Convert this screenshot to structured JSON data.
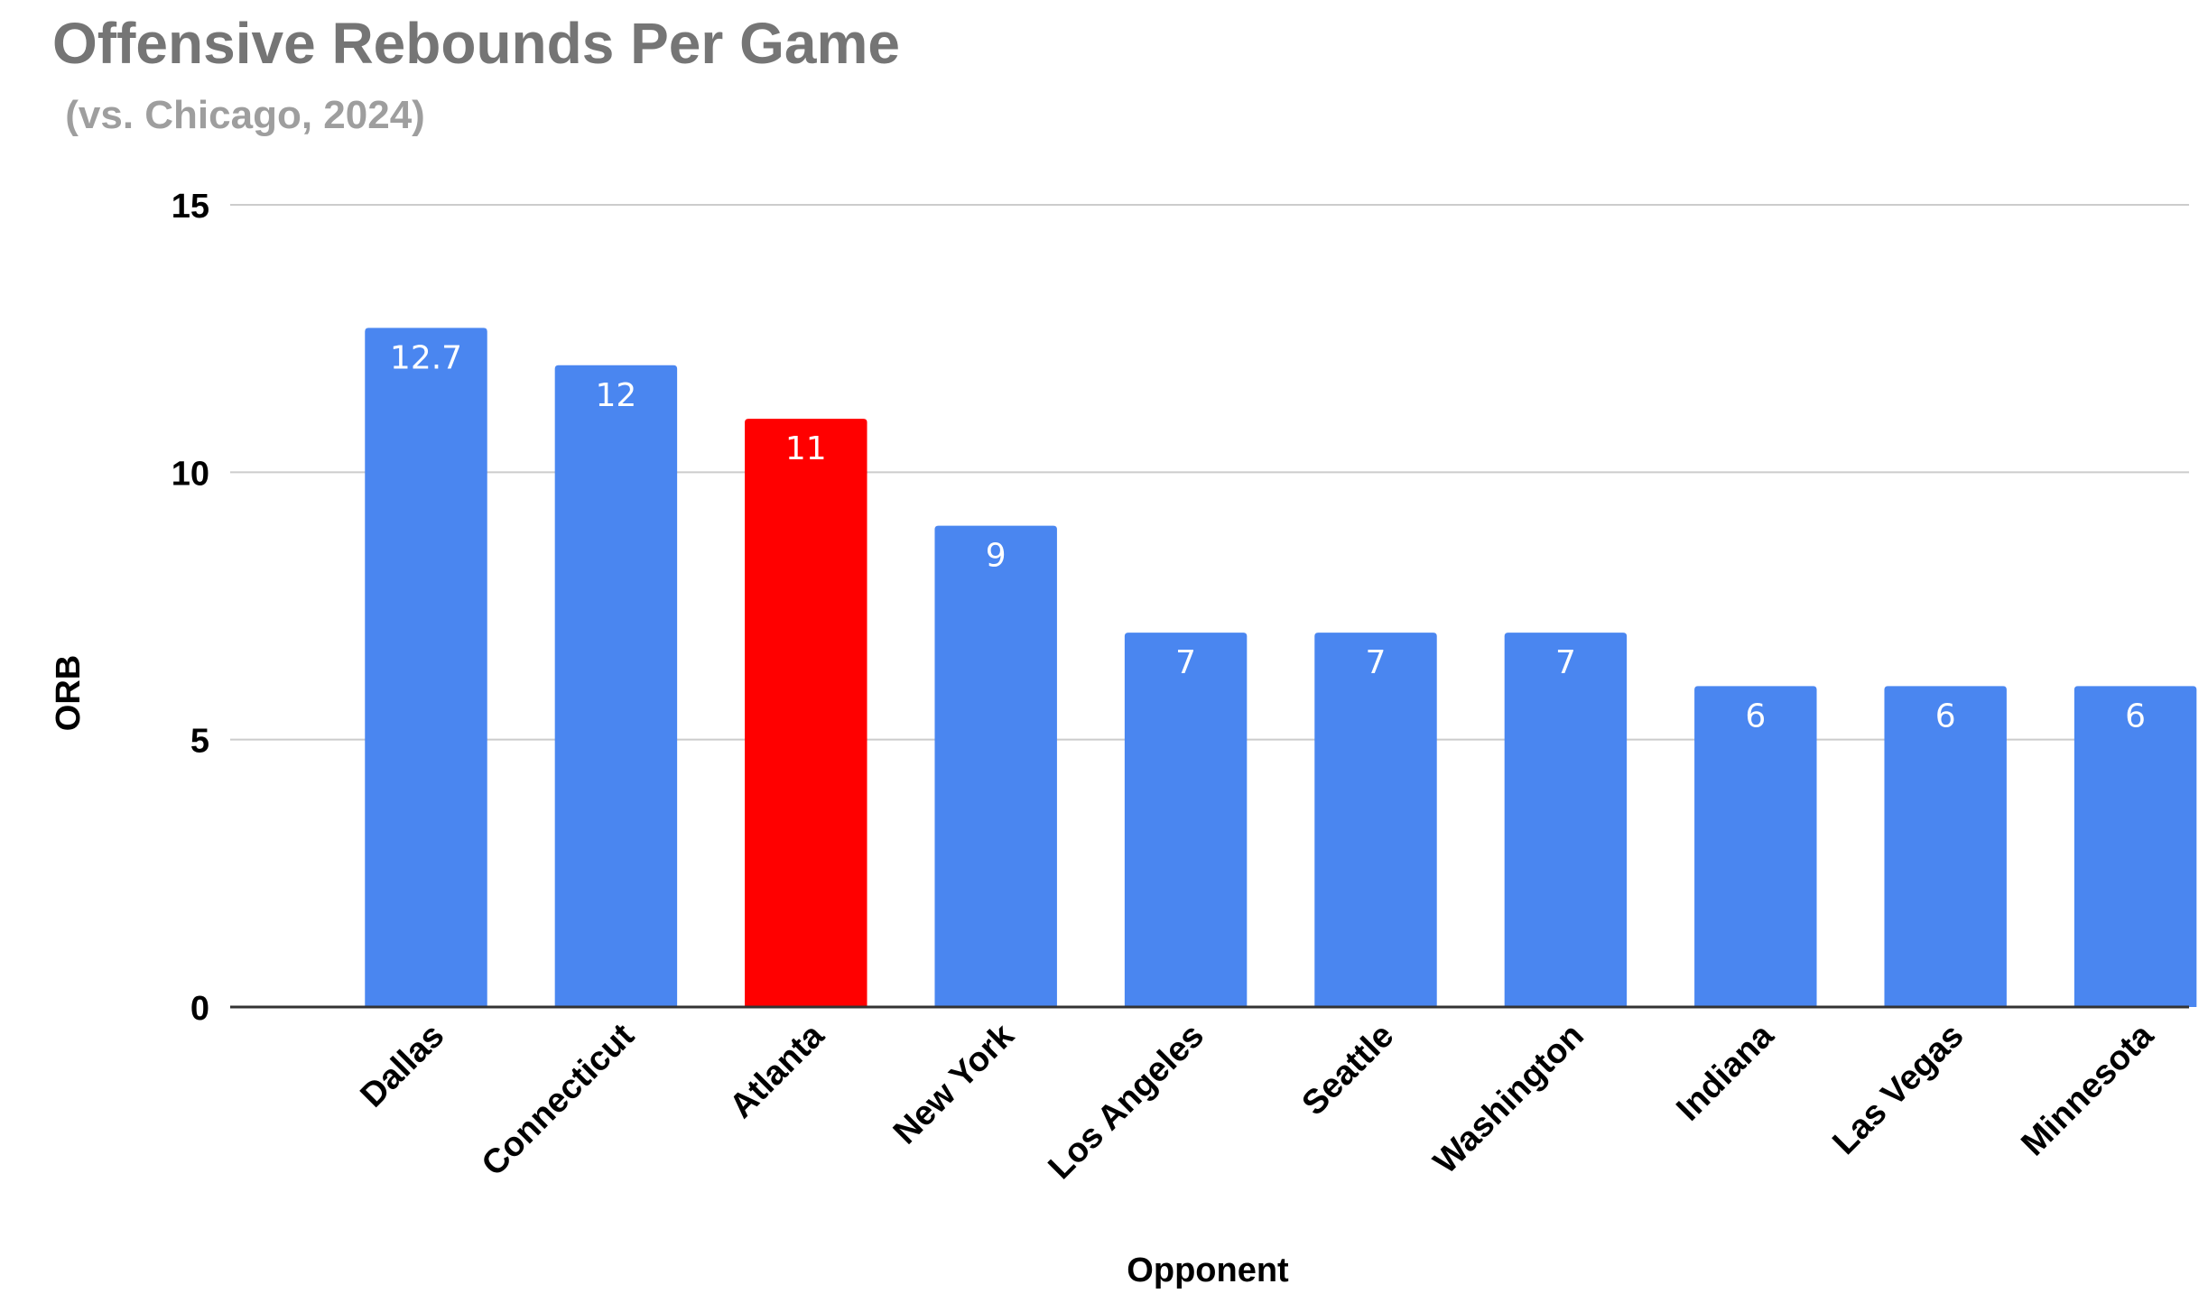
{
  "chart_data": {
    "type": "bar",
    "title": "Offensive Rebounds Per Game",
    "subtitle": " (vs. Chicago, 2024)",
    "xlabel": "Opponent",
    "ylabel": "ORB",
    "categories": [
      "Dallas",
      "Connecticut",
      "Atlanta",
      "New York",
      "Los Angeles",
      "Seattle",
      "Washington",
      "Indiana",
      "Las Vegas",
      "Minnesota"
    ],
    "values": [
      12.7,
      12,
      11,
      9,
      7,
      7,
      7,
      6,
      6,
      6
    ],
    "data_labels": [
      "12.7",
      "12",
      "11",
      "9",
      "7",
      "7",
      "7",
      "6",
      "6",
      "6"
    ],
    "ylim": [
      0,
      15
    ],
    "yticks": [
      0,
      5,
      10,
      15
    ],
    "grid": true,
    "legend": "none",
    "colors": {
      "default": "#4a86f0",
      "highlight": "#ff0000",
      "highlight_category": "Atlanta"
    }
  }
}
